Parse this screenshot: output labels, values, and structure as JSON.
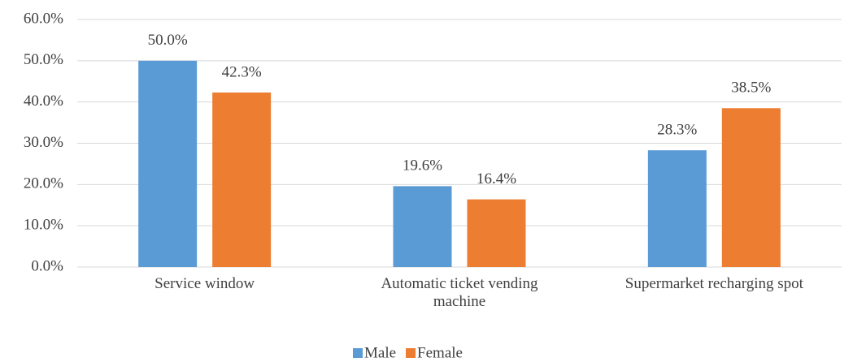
{
  "chart_data": {
    "type": "bar",
    "categories": [
      "Service window",
      "Automatic ticket vending machine",
      "Supermarket recharging spot"
    ],
    "series": [
      {
        "name": "Male",
        "color": "#5b9bd5",
        "values": [
          50.0,
          19.6,
          28.3
        ],
        "value_labels": [
          "50.0%",
          "19.6%",
          "28.3%"
        ]
      },
      {
        "name": "Female",
        "color": "#ed7d31",
        "values": [
          42.3,
          16.4,
          38.5
        ],
        "value_labels": [
          "42.3%",
          "16.4%",
          "38.5%"
        ]
      }
    ],
    "ylim": [
      0,
      60
    ],
    "yticks": [
      {
        "value": 0,
        "label": "0.0%"
      },
      {
        "value": 10,
        "label": "10.0%"
      },
      {
        "value": 20,
        "label": "20.0%"
      },
      {
        "value": 30,
        "label": "30.0%"
      },
      {
        "value": 40,
        "label": "40.0%"
      },
      {
        "value": 50,
        "label": "50.0%"
      },
      {
        "value": 60,
        "label": "60.0%"
      }
    ],
    "grid": true,
    "legend": "bottom"
  }
}
